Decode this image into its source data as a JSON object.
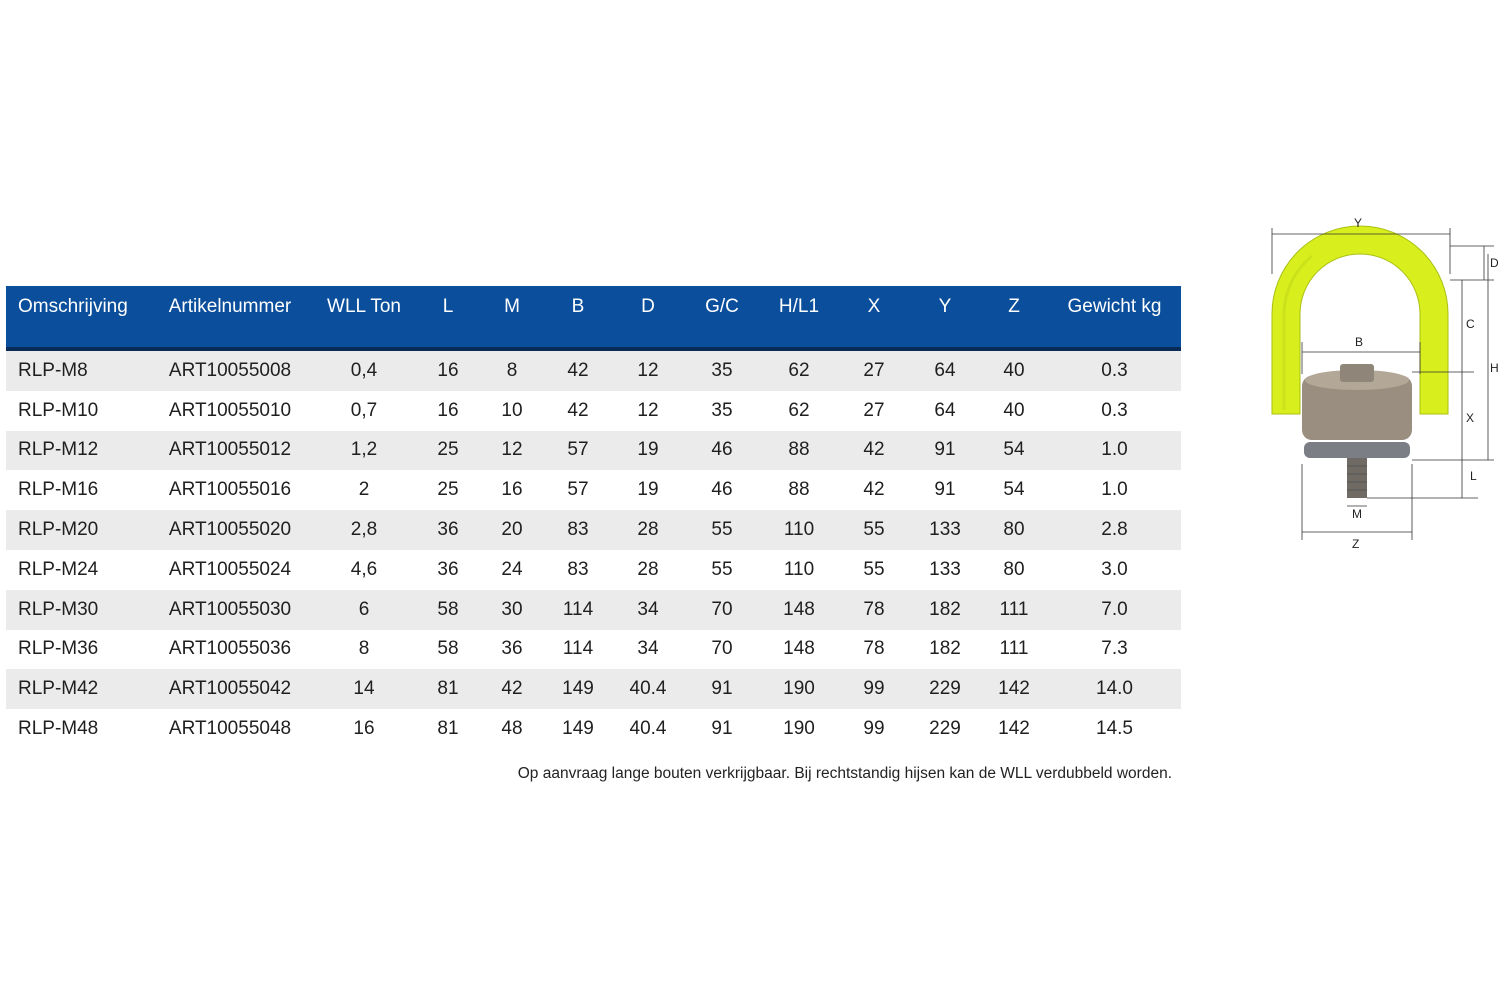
{
  "table": {
    "headers": [
      "Omschrijving",
      "Artikelnummer",
      "WLL Ton",
      "L",
      "M",
      "B",
      "D",
      "G/C",
      "H/L1",
      "X",
      "Y",
      "Z",
      "Gewicht kg"
    ],
    "rows": [
      [
        "RLP-M8",
        "ART10055008",
        "0,4",
        "16",
        "8",
        "42",
        "12",
        "35",
        "62",
        "27",
        "64",
        "40",
        "0.3"
      ],
      [
        "RLP-M10",
        "ART10055010",
        "0,7",
        "16",
        "10",
        "42",
        "12",
        "35",
        "62",
        "27",
        "64",
        "40",
        "0.3"
      ],
      [
        "RLP-M12",
        "ART10055012",
        "1,2",
        "25",
        "12",
        "57",
        "19",
        "46",
        "88",
        "42",
        "91",
        "54",
        "1.0"
      ],
      [
        "RLP-M16",
        "ART10055016",
        "2",
        "25",
        "16",
        "57",
        "19",
        "46",
        "88",
        "42",
        "91",
        "54",
        "1.0"
      ],
      [
        "RLP-M20",
        "ART10055020",
        "2,8",
        "36",
        "20",
        "83",
        "28",
        "55",
        "110",
        "55",
        "133",
        "80",
        "2.8"
      ],
      [
        "RLP-M24",
        "ART10055024",
        "4,6",
        "36",
        "24",
        "83",
        "28",
        "55",
        "110",
        "55",
        "133",
        "80",
        "3.0"
      ],
      [
        "RLP-M30",
        "ART10055030",
        "6",
        "58",
        "30",
        "114",
        "34",
        "70",
        "148",
        "78",
        "182",
        "111",
        "7.0"
      ],
      [
        "RLP-M36",
        "ART10055036",
        "8",
        "58",
        "36",
        "114",
        "34",
        "70",
        "148",
        "78",
        "182",
        "111",
        "7.3"
      ],
      [
        "RLP-M42",
        "ART10055042",
        "14",
        "81",
        "42",
        "149",
        "40.4",
        "91",
        "190",
        "99",
        "229",
        "142",
        "14.0"
      ],
      [
        "RLP-M48",
        "ART10055048",
        "16",
        "81",
        "48",
        "149",
        "40.4",
        "91",
        "190",
        "99",
        "229",
        "142",
        "14.5"
      ]
    ]
  },
  "footnote": "Op aanvraag lange bouten verkrijgbaar. Bij rechtstandig hijsen kan de WLL verdubbeld worden.",
  "diagram": {
    "labels": {
      "Y": "Y",
      "D": "D",
      "C": "C",
      "B": "B",
      "H": "H",
      "X": "X",
      "L": "L",
      "M": "M",
      "Z": "Z"
    },
    "colors": {
      "ring": "#d9ef1d",
      "ring_shade": "#b8d11a",
      "metal": "#8a7f72",
      "header": "#0b4f9c"
    }
  }
}
